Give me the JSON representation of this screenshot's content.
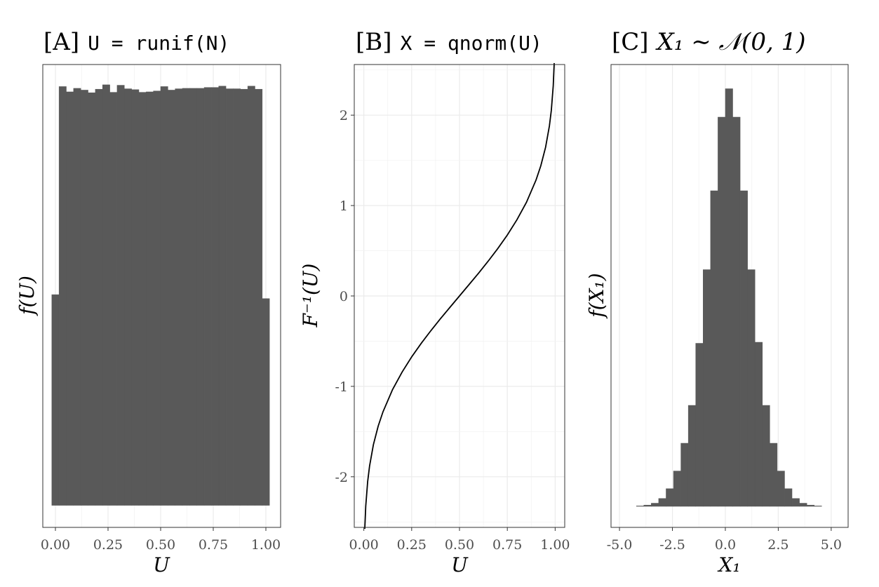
{
  "chart_data": [
    {
      "panel": "A",
      "type": "histogram",
      "title": {
        "prefix": "[A]",
        "code": "U = runif(N)"
      },
      "xlabel": "U",
      "ylabel": "f(U)",
      "xlim": [
        -0.06,
        1.07
      ],
      "ylim": [
        -0.05,
        1.0
      ],
      "x_ticks": [
        "0.00",
        "0.25",
        "0.50",
        "0.75",
        "1.00"
      ],
      "x_tick_values": [
        0,
        0.25,
        0.5,
        0.75,
        1.0
      ],
      "y_ticks_shown": false,
      "bin_width": 0.0345,
      "bins": [
        {
          "x0": -0.0172,
          "x1": 0.0172,
          "y": 0.478
        },
        {
          "x0": 0.0172,
          "x1": 0.0517,
          "y": 0.95
        },
        {
          "x0": 0.0517,
          "x1": 0.0862,
          "y": 0.938
        },
        {
          "x0": 0.0862,
          "x1": 0.1207,
          "y": 0.946
        },
        {
          "x0": 0.1207,
          "x1": 0.1552,
          "y": 0.942
        },
        {
          "x0": 0.1552,
          "x1": 0.1897,
          "y": 0.936
        },
        {
          "x0": 0.1897,
          "x1": 0.2241,
          "y": 0.944
        },
        {
          "x0": 0.2241,
          "x1": 0.2586,
          "y": 0.954
        },
        {
          "x0": 0.2586,
          "x1": 0.2931,
          "y": 0.937
        },
        {
          "x0": 0.2931,
          "x1": 0.3276,
          "y": 0.953
        },
        {
          "x0": 0.3276,
          "x1": 0.3621,
          "y": 0.945
        },
        {
          "x0": 0.3621,
          "x1": 0.3966,
          "y": 0.943
        },
        {
          "x0": 0.3966,
          "x1": 0.431,
          "y": 0.937
        },
        {
          "x0": 0.431,
          "x1": 0.4655,
          "y": 0.938
        },
        {
          "x0": 0.4655,
          "x1": 0.5,
          "y": 0.94
        },
        {
          "x0": 0.5,
          "x1": 0.5345,
          "y": 0.95
        },
        {
          "x0": 0.5345,
          "x1": 0.569,
          "y": 0.942
        },
        {
          "x0": 0.569,
          "x1": 0.6034,
          "y": 0.945
        },
        {
          "x0": 0.6034,
          "x1": 0.6379,
          "y": 0.946
        },
        {
          "x0": 0.6379,
          "x1": 0.6724,
          "y": 0.946
        },
        {
          "x0": 0.6724,
          "x1": 0.7069,
          "y": 0.946
        },
        {
          "x0": 0.7069,
          "x1": 0.7414,
          "y": 0.948
        },
        {
          "x0": 0.7414,
          "x1": 0.7759,
          "y": 0.948
        },
        {
          "x0": 0.7759,
          "x1": 0.8103,
          "y": 0.951
        },
        {
          "x0": 0.8103,
          "x1": 0.8448,
          "y": 0.945
        },
        {
          "x0": 0.8448,
          "x1": 0.8793,
          "y": 0.945
        },
        {
          "x0": 0.8793,
          "x1": 0.9138,
          "y": 0.944
        },
        {
          "x0": 0.9138,
          "x1": 0.9483,
          "y": 0.951
        },
        {
          "x0": 0.9483,
          "x1": 0.9828,
          "y": 0.944
        },
        {
          "x0": 0.9828,
          "x1": 1.0172,
          "y": 0.469
        }
      ]
    },
    {
      "panel": "B",
      "type": "line",
      "title": {
        "prefix": "[B]",
        "code": "X = qnorm(U)"
      },
      "xlabel": "U",
      "ylabel": "F⁻¹(U)",
      "xlim": [
        -0.05,
        1.05
      ],
      "ylim": [
        -2.56,
        2.56
      ],
      "x_ticks": [
        "0.00",
        "0.25",
        "0.50",
        "0.75",
        "1.00"
      ],
      "x_tick_values": [
        0,
        0.25,
        0.5,
        0.75,
        1.0
      ],
      "y_ticks": [
        "-2",
        "-1",
        "0",
        "1",
        "2"
      ],
      "y_tick_values": [
        -2,
        -1,
        0,
        1,
        2
      ],
      "series": [
        {
          "x": [
            0.005,
            0.01,
            0.02,
            0.03,
            0.05,
            0.075,
            0.1,
            0.15,
            0.2,
            0.25,
            0.3,
            0.35,
            0.4,
            0.45,
            0.5,
            0.55,
            0.6,
            0.65,
            0.7,
            0.75,
            0.8,
            0.85,
            0.9,
            0.925,
            0.95,
            0.97,
            0.98,
            0.99,
            0.995
          ],
          "y": [
            -2.576,
            -2.326,
            -2.054,
            -1.881,
            -1.645,
            -1.44,
            -1.282,
            -1.036,
            -0.842,
            -0.674,
            -0.524,
            -0.385,
            -0.253,
            -0.126,
            0.0,
            0.126,
            0.253,
            0.385,
            0.524,
            0.674,
            0.842,
            1.036,
            1.282,
            1.44,
            1.645,
            1.881,
            2.054,
            2.326,
            2.576
          ]
        }
      ]
    },
    {
      "panel": "C",
      "type": "histogram",
      "title": {
        "prefix": "[C]",
        "math": "X₁ ∼ 𝒩(0, 1)"
      },
      "xlabel": "X₁",
      "ylabel": "f(X₁)",
      "xlim": [
        -5.4,
        5.8
      ],
      "ylim": [
        -0.02,
        0.42
      ],
      "x_ticks": [
        "-5.0",
        "-2.5",
        "0.0",
        "2.5",
        "5.0"
      ],
      "x_tick_values": [
        -5,
        -2.5,
        0,
        2.5,
        5
      ],
      "y_ticks_shown": false,
      "bin_width": 0.35,
      "bins": [
        {
          "x0": -4.2,
          "x1": -3.85,
          "y": 0.0004
        },
        {
          "x0": -3.85,
          "x1": -3.5,
          "y": 0.0012
        },
        {
          "x0": -3.5,
          "x1": -3.15,
          "y": 0.003
        },
        {
          "x0": -3.15,
          "x1": -2.8,
          "y": 0.0075
        },
        {
          "x0": -2.8,
          "x1": -2.45,
          "y": 0.0168
        },
        {
          "x0": -2.45,
          "x1": -2.1,
          "y": 0.0336
        },
        {
          "x0": -2.1,
          "x1": -1.75,
          "y": 0.06
        },
        {
          "x0": -1.75,
          "x1": -1.4,
          "y": 0.096
        },
        {
          "x0": -1.4,
          "x1": -1.05,
          "y": 0.155
        },
        {
          "x0": -1.05,
          "x1": -0.7,
          "y": 0.225
        },
        {
          "x0": -0.7,
          "x1": -0.35,
          "y": 0.3
        },
        {
          "x0": -0.35,
          "x1": -0.0,
          "y": 0.37
        },
        {
          "x0": 0.0,
          "x1": 0.35,
          "y": 0.397
        },
        {
          "x0": 0.35,
          "x1": 0.7,
          "y": 0.37
        },
        {
          "x0": 0.7,
          "x1": 1.05,
          "y": 0.3
        },
        {
          "x0": 1.05,
          "x1": 1.4,
          "y": 0.225
        },
        {
          "x0": 1.4,
          "x1": 1.75,
          "y": 0.156
        },
        {
          "x0": 1.75,
          "x1": 2.1,
          "y": 0.096
        },
        {
          "x0": 2.1,
          "x1": 2.45,
          "y": 0.06
        },
        {
          "x0": 2.45,
          "x1": 2.8,
          "y": 0.0336
        },
        {
          "x0": 2.8,
          "x1": 3.15,
          "y": 0.0168
        },
        {
          "x0": 3.15,
          "x1": 3.5,
          "y": 0.0075
        },
        {
          "x0": 3.5,
          "x1": 3.85,
          "y": 0.003
        },
        {
          "x0": 3.85,
          "x1": 4.2,
          "y": 0.0012
        },
        {
          "x0": 4.2,
          "x1": 4.55,
          "y": 0.0004
        }
      ]
    }
  ]
}
